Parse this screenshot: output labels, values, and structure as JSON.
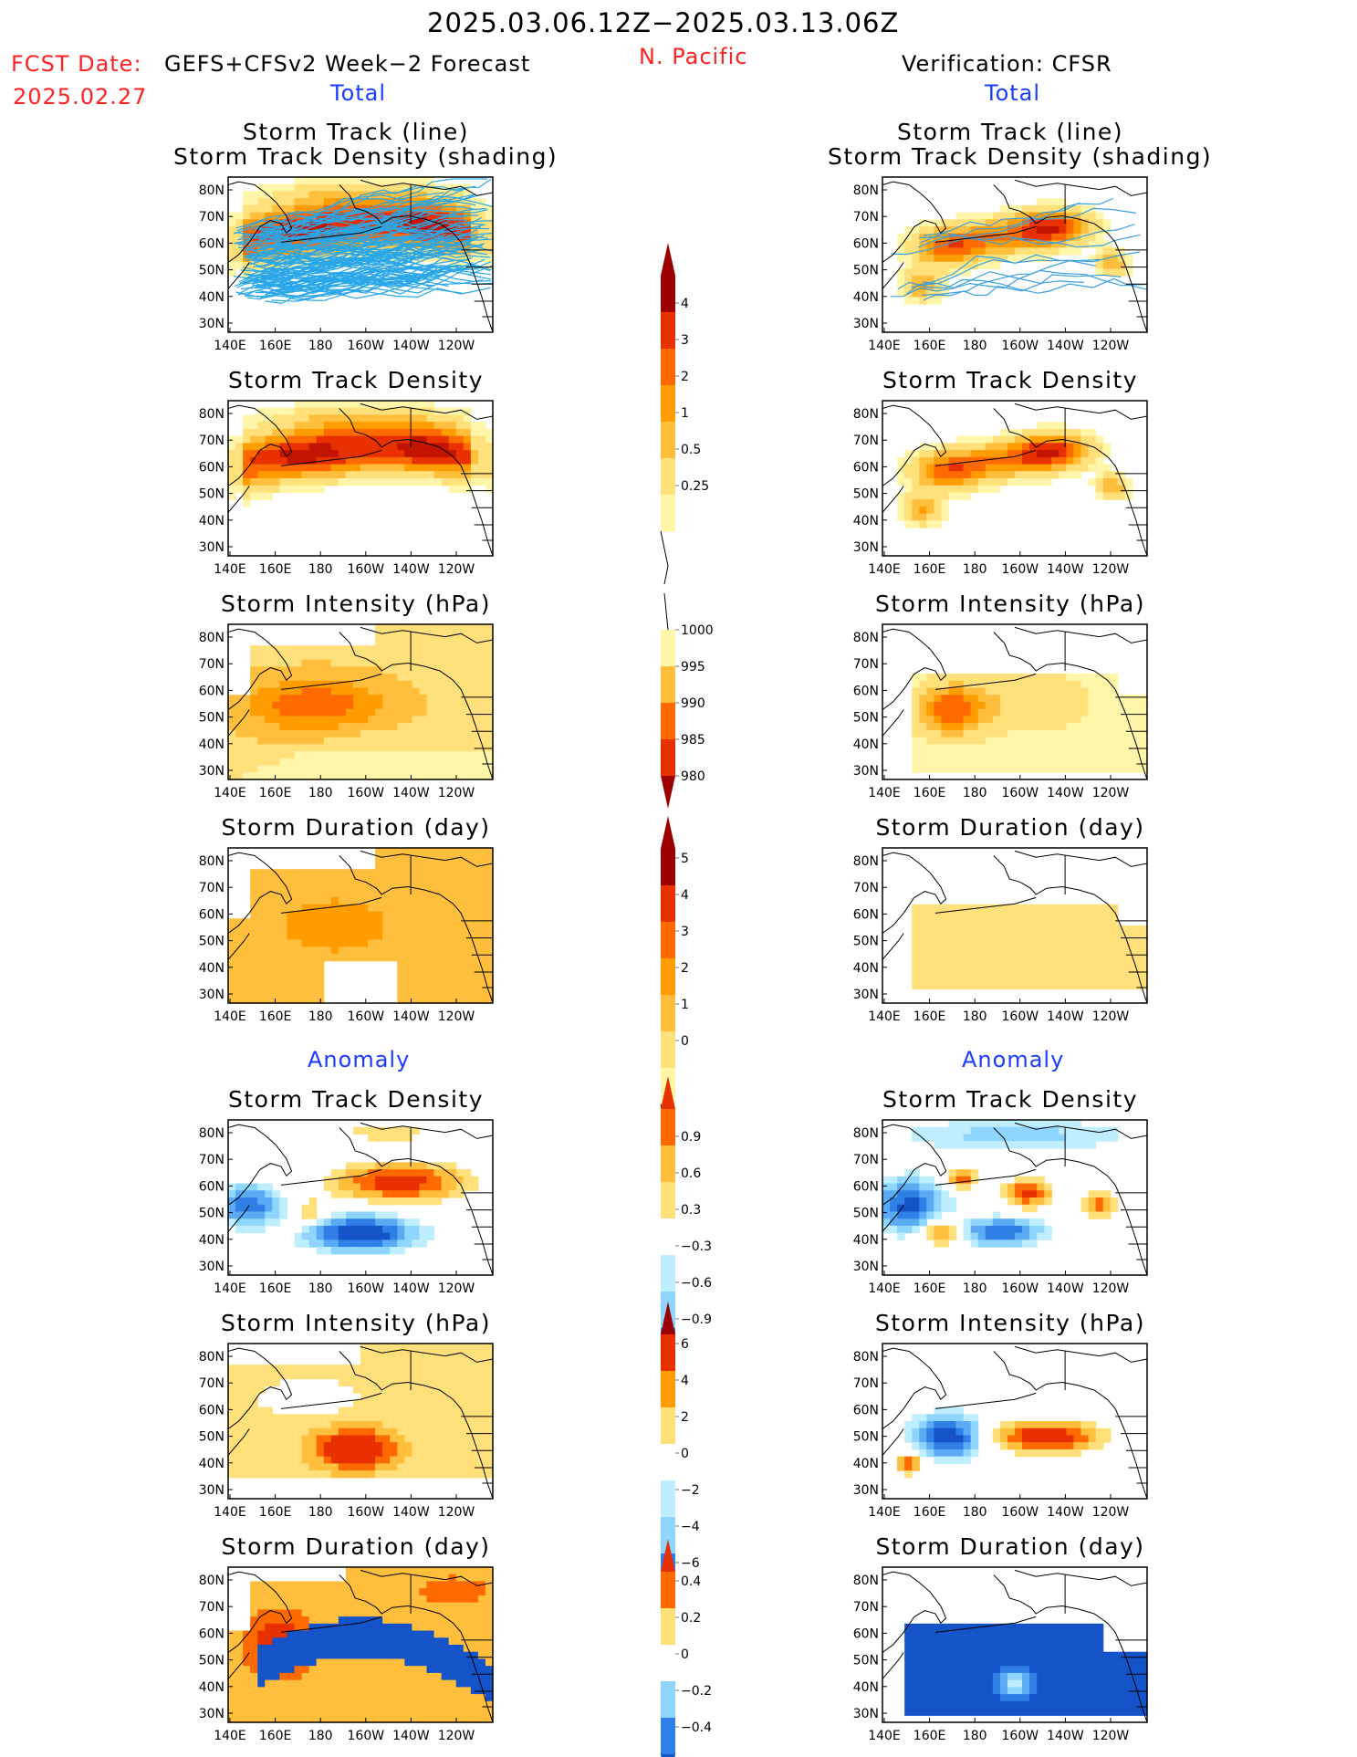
{
  "header": {
    "date_range": "2025.03.06.12Z−2025.03.13.06Z",
    "region": "N. Pacific",
    "fcst_label": "FCST Date:",
    "fcst_date": "2025.02.27",
    "model_name": "GEFS+CFSv2 Week−2 Forecast",
    "verification": "Verification: CFSR",
    "left_section_total": "Total",
    "right_section_total": "Total",
    "left_section_anomaly": "Anomaly",
    "right_section_anomaly": "Anomaly"
  },
  "axes": {
    "lat_ticks": [
      "80N",
      "70N",
      "60N",
      "50N",
      "40N",
      "30N"
    ],
    "lon_ticks": [
      "140E",
      "160E",
      "180",
      "160W",
      "140W",
      "120W"
    ]
  },
  "panels": {
    "track_line_1": "Storm Track (line)",
    "track_line_2": "Storm Track Density (shading)",
    "density": "Storm Track Density",
    "intensity": "Storm Intensity (hPa)",
    "duration": "Storm Duration (day)"
  },
  "colorbars": {
    "density_total": [
      "4",
      "3",
      "2",
      "1",
      "0.5",
      "0.25"
    ],
    "intensity_total": [
      "1000",
      "995",
      "990",
      "985",
      "980"
    ],
    "duration_total": [
      "5",
      "4",
      "3",
      "2",
      "1",
      "0"
    ],
    "density_anom": [
      "0.9",
      "0.6",
      "0.3",
      "−0.3",
      "−0.6",
      "−0.9"
    ],
    "intensity_anom": [
      "6",
      "4",
      "2",
      "0",
      "−2",
      "−4",
      "−6"
    ],
    "duration_anom": [
      "0.4",
      "0.2",
      "0",
      "−0.2",
      "−0.4"
    ]
  },
  "colors": {
    "title_red": "#ff2222",
    "section_blue": "#1a3cff",
    "warm": [
      "#fff6aa",
      "#ffe07a",
      "#ffbe3c",
      "#ff9c00",
      "#ff6a00",
      "#e83000",
      "#c21400",
      "#9c0000"
    ],
    "cool": [
      "#ffffff",
      "#bfefff",
      "#8fd6ff",
      "#5aaaf4",
      "#2e7fe6",
      "#1553c8"
    ]
  },
  "chart_data": {
    "type": "heatmap",
    "title": "2025.03.06.12Z−2025.03.13.06Z",
    "subtitle": "N. Pacific",
    "xlabel": "",
    "ylabel": "",
    "x_ticks": [
      "140E",
      "160E",
      "180",
      "160W",
      "140W",
      "120W"
    ],
    "y_ticks": [
      "80N",
      "70N",
      "60N",
      "50N",
      "40N",
      "30N"
    ],
    "panels": [
      {
        "column": "GEFS+CFSv2 Week−2 Forecast",
        "section": "Total",
        "field": "Storm Track (line) / Storm Track Density (shading)",
        "levels": [
          0.25,
          0.5,
          1,
          2,
          3,
          4
        ]
      },
      {
        "column": "GEFS+CFSv2 Week−2 Forecast",
        "section": "Total",
        "field": "Storm Track Density",
        "levels": [
          0.25,
          0.5,
          1,
          2,
          3,
          4
        ]
      },
      {
        "column": "GEFS+CFSv2 Week−2 Forecast",
        "section": "Total",
        "field": "Storm Intensity (hPa)",
        "levels": [
          1000,
          995,
          990,
          985,
          980
        ]
      },
      {
        "column": "GEFS+CFSv2 Week−2 Forecast",
        "section": "Total",
        "field": "Storm Duration (day)",
        "levels": [
          0,
          1,
          2,
          3,
          4,
          5
        ]
      },
      {
        "column": "GEFS+CFSv2 Week−2 Forecast",
        "section": "Anomaly",
        "field": "Storm Track Density",
        "levels": [
          -0.9,
          -0.6,
          -0.3,
          0.3,
          0.6,
          0.9
        ]
      },
      {
        "column": "GEFS+CFSv2 Week−2 Forecast",
        "section": "Anomaly",
        "field": "Storm Intensity (hPa)",
        "levels": [
          -6,
          -4,
          -2,
          0,
          2,
          4,
          6
        ]
      },
      {
        "column": "GEFS+CFSv2 Week−2 Forecast",
        "section": "Anomaly",
        "field": "Storm Duration (day)",
        "levels": [
          -0.4,
          -0.2,
          0,
          0.2,
          0.4
        ]
      },
      {
        "column": "Verification: CFSR",
        "section": "Total",
        "field": "Storm Track (line) / Storm Track Density (shading)",
        "levels": [
          0.25,
          0.5,
          1,
          2,
          3,
          4
        ]
      },
      {
        "column": "Verification: CFSR",
        "section": "Total",
        "field": "Storm Track Density",
        "levels": [
          0.25,
          0.5,
          1,
          2,
          3,
          4
        ]
      },
      {
        "column": "Verification: CFSR",
        "section": "Total",
        "field": "Storm Intensity (hPa)",
        "levels": [
          1000,
          995,
          990,
          985,
          980
        ]
      },
      {
        "column": "Verification: CFSR",
        "section": "Total",
        "field": "Storm Duration (day)",
        "levels": [
          0,
          1,
          2,
          3,
          4,
          5
        ]
      },
      {
        "column": "Verification: CFSR",
        "section": "Anomaly",
        "field": "Storm Track Density",
        "levels": [
          -0.9,
          -0.6,
          -0.3,
          0.3,
          0.6,
          0.9
        ]
      },
      {
        "column": "Verification: CFSR",
        "section": "Anomaly",
        "field": "Storm Intensity (hPa)",
        "levels": [
          -6,
          -4,
          -2,
          0,
          2,
          4,
          6
        ]
      },
      {
        "column": "Verification: CFSR",
        "section": "Anomaly",
        "field": "Storm Duration (day)",
        "levels": [
          -0.4,
          -0.2,
          0,
          0.2,
          0.4
        ]
      }
    ]
  }
}
